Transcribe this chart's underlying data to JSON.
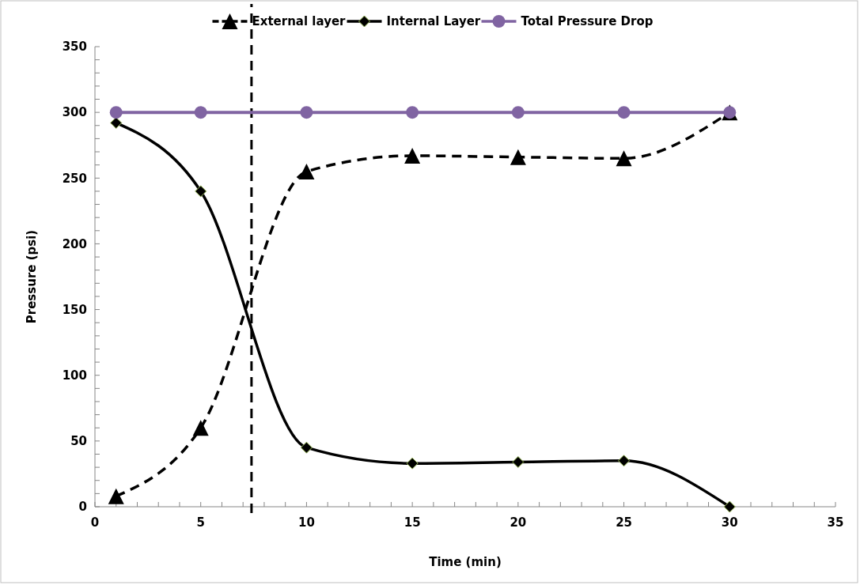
{
  "chart_data": {
    "type": "line",
    "xlabel": "Time (min)",
    "ylabel": "Pressure (psi)",
    "x": [
      1,
      5,
      10,
      15,
      20,
      25,
      30
    ],
    "series": [
      {
        "name": "External layer",
        "color": "#000000",
        "values": [
          8,
          60,
          255,
          267,
          266,
          265,
          300
        ],
        "marker": "triangle",
        "line_style": "dashed"
      },
      {
        "name": "Internal Layer",
        "color": "#000000",
        "values": [
          292,
          240,
          45,
          33,
          34,
          35,
          0
        ],
        "marker": "diamond",
        "line_style": "solid"
      },
      {
        "name": "Total Pressure Drop",
        "color": "#8064a2",
        "values": [
          300,
          300,
          300,
          300,
          300,
          300,
          300
        ],
        "marker": "circle",
        "line_style": "solid"
      }
    ],
    "xlim": [
      0,
      35
    ],
    "xticks": [
      0,
      {
        "value": 1,
        "label": null
      },
      {
        "value": 2,
        "label": null
      },
      {
        "value": 3,
        "label": null
      },
      {
        "value": 4,
        "label": null
      },
      5,
      {
        "value": 6,
        "label": null
      },
      {
        "value": 7,
        "label": null
      },
      {
        "value": 8,
        "label": null
      },
      {
        "value": 9,
        "label": null
      },
      10,
      {
        "value": 11,
        "label": null
      },
      {
        "value": 12,
        "label": null
      },
      {
        "value": 13,
        "label": null
      },
      {
        "value": 14,
        "label": null
      },
      15,
      {
        "value": 16,
        "label": null
      },
      {
        "value": 17,
        "label": null
      },
      {
        "value": 18,
        "label": null
      },
      {
        "value": 19,
        "label": null
      },
      20,
      {
        "value": 21,
        "label": null
      },
      {
        "value": 22,
        "label": null
      },
      {
        "value": 23,
        "label": null
      },
      {
        "value": 24,
        "label": null
      },
      25,
      {
        "value": 26,
        "label": null
      },
      {
        "value": 27,
        "label": null
      },
      {
        "value": 28,
        "label": null
      },
      {
        "value": 29,
        "label": null
      },
      30,
      {
        "value": 31,
        "label": null
      },
      {
        "value": 32,
        "label": null
      },
      {
        "value": 33,
        "label": null
      },
      {
        "value": 34,
        "label": null
      },
      35
    ],
    "ylim": [
      0,
      350
    ],
    "yticks": [
      0,
      {
        "value": 10,
        "label": null
      },
      {
        "value": 20,
        "label": null
      },
      {
        "value": 30,
        "label": null
      },
      {
        "value": 40,
        "label": null
      },
      50,
      {
        "value": 60,
        "label": null
      },
      {
        "value": 70,
        "label": null
      },
      {
        "value": 80,
        "label": null
      },
      {
        "value": 90,
        "label": null
      },
      100,
      {
        "value": 110,
        "label": null
      },
      {
        "value": 120,
        "label": null
      },
      {
        "value": 130,
        "label": null
      },
      {
        "value": 140,
        "label": null
      },
      150,
      {
        "value": 160,
        "label": null
      },
      {
        "value": 170,
        "label": null
      },
      {
        "value": 180,
        "label": null
      },
      {
        "value": 190,
        "label": null
      },
      200,
      {
        "value": 210,
        "label": null
      },
      {
        "value": 220,
        "label": null
      },
      {
        "value": 230,
        "label": null
      },
      {
        "value": 240,
        "label": null
      },
      250,
      {
        "value": 260,
        "label": null
      },
      {
        "value": 270,
        "label": null
      },
      {
        "value": 280,
        "label": null
      },
      {
        "value": 290,
        "label": null
      },
      300,
      {
        "value": 310,
        "label": null
      },
      {
        "value": 320,
        "label": null
      },
      {
        "value": 330,
        "label": null
      },
      {
        "value": 340,
        "label": null
      },
      350
    ],
    "ref_lines": [
      {
        "axis": "x",
        "value": 7.4,
        "color": "#000000",
        "line_style": "dashed"
      }
    ],
    "grid": false,
    "legend": "top"
  }
}
